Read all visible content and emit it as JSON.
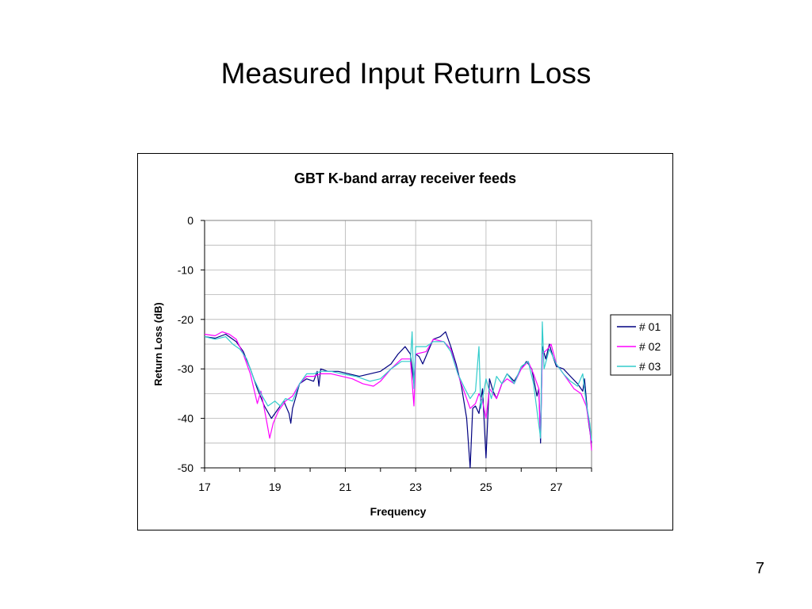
{
  "slide": {
    "title": "Measured Input Return Loss",
    "page_number": "7"
  },
  "chart_data": {
    "type": "line",
    "title": "GBT K-band array receiver feeds",
    "xlabel": "Frequency",
    "ylabel": "Return Loss (dB)",
    "xlim": [
      17,
      28
    ],
    "ylim": [
      -50,
      0
    ],
    "xticks": [
      17,
      19,
      21,
      23,
      25,
      27
    ],
    "yticks": [
      0,
      -10,
      -20,
      -30,
      -40,
      -50
    ],
    "grid": true,
    "legend_position": "right",
    "series": [
      {
        "name": "# 01",
        "color": "#000080",
        "points": [
          [
            17.0,
            -23.5
          ],
          [
            17.3,
            -23.8
          ],
          [
            17.6,
            -23.0
          ],
          [
            17.9,
            -24.5
          ],
          [
            18.1,
            -26.5
          ],
          [
            18.3,
            -30.0
          ],
          [
            18.5,
            -34.0
          ],
          [
            18.7,
            -37.5
          ],
          [
            18.9,
            -40.0
          ],
          [
            19.0,
            -39.0
          ],
          [
            19.1,
            -38.0
          ],
          [
            19.25,
            -36.5
          ],
          [
            19.4,
            -39.0
          ],
          [
            19.45,
            -41.0
          ],
          [
            19.5,
            -38.0
          ],
          [
            19.7,
            -33.0
          ],
          [
            19.9,
            -32.0
          ],
          [
            20.1,
            -32.5
          ],
          [
            20.2,
            -30.5
          ],
          [
            20.25,
            -33.5
          ],
          [
            20.3,
            -30.0
          ],
          [
            20.5,
            -30.5
          ],
          [
            20.8,
            -30.5
          ],
          [
            21.1,
            -31.0
          ],
          [
            21.4,
            -31.5
          ],
          [
            21.7,
            -31.0
          ],
          [
            22.0,
            -30.5
          ],
          [
            22.3,
            -29.0
          ],
          [
            22.5,
            -27.0
          ],
          [
            22.7,
            -25.5
          ],
          [
            22.85,
            -27.0
          ],
          [
            22.95,
            -33.0
          ],
          [
            23.0,
            -27.0
          ],
          [
            23.1,
            -27.5
          ],
          [
            23.2,
            -29.0
          ],
          [
            23.35,
            -26.5
          ],
          [
            23.5,
            -24.0
          ],
          [
            23.7,
            -23.5
          ],
          [
            23.85,
            -22.5
          ],
          [
            24.0,
            -25.5
          ],
          [
            24.15,
            -29.0
          ],
          [
            24.3,
            -33.5
          ],
          [
            24.45,
            -40.0
          ],
          [
            24.55,
            -50.0
          ],
          [
            24.62,
            -38.0
          ],
          [
            24.7,
            -37.5
          ],
          [
            24.8,
            -39.0
          ],
          [
            24.9,
            -34.0
          ],
          [
            25.0,
            -48.0
          ],
          [
            25.1,
            -32.0
          ],
          [
            25.2,
            -34.5
          ],
          [
            25.3,
            -36.0
          ],
          [
            25.45,
            -33.0
          ],
          [
            25.6,
            -31.0
          ],
          [
            25.8,
            -32.5
          ],
          [
            26.0,
            -30.0
          ],
          [
            26.15,
            -28.5
          ],
          [
            26.3,
            -30.0
          ],
          [
            26.45,
            -35.5
          ],
          [
            26.5,
            -34.0
          ],
          [
            26.55,
            -45.0
          ],
          [
            26.6,
            -25.5
          ],
          [
            26.7,
            -28.0
          ],
          [
            26.8,
            -25.0
          ],
          [
            26.9,
            -27.5
          ],
          [
            27.0,
            -29.5
          ],
          [
            27.2,
            -30.0
          ],
          [
            27.4,
            -31.5
          ],
          [
            27.6,
            -33.0
          ],
          [
            27.75,
            -34.5
          ],
          [
            27.8,
            -32.0
          ],
          [
            27.9,
            -40.0
          ],
          [
            28.0,
            -45.0
          ]
        ]
      },
      {
        "name": "# 02",
        "color": "#ff00ff",
        "points": [
          [
            17.0,
            -23.0
          ],
          [
            17.3,
            -23.3
          ],
          [
            17.5,
            -22.5
          ],
          [
            17.7,
            -23.0
          ],
          [
            17.9,
            -24.0
          ],
          [
            18.1,
            -27.0
          ],
          [
            18.3,
            -31.0
          ],
          [
            18.45,
            -35.5
          ],
          [
            18.5,
            -37.0
          ],
          [
            18.6,
            -34.5
          ],
          [
            18.75,
            -40.0
          ],
          [
            18.85,
            -44.0
          ],
          [
            18.95,
            -41.0
          ],
          [
            19.1,
            -38.5
          ],
          [
            19.3,
            -36.5
          ],
          [
            19.5,
            -35.5
          ],
          [
            19.7,
            -33.0
          ],
          [
            19.9,
            -31.5
          ],
          [
            20.1,
            -31.5
          ],
          [
            20.3,
            -31.0
          ],
          [
            20.6,
            -31.0
          ],
          [
            20.9,
            -31.5
          ],
          [
            21.2,
            -32.0
          ],
          [
            21.5,
            -33.0
          ],
          [
            21.8,
            -33.5
          ],
          [
            22.0,
            -32.5
          ],
          [
            22.3,
            -30.0
          ],
          [
            22.6,
            -28.0
          ],
          [
            22.85,
            -28.0
          ],
          [
            22.95,
            -37.5
          ],
          [
            23.0,
            -27.0
          ],
          [
            23.3,
            -26.5
          ],
          [
            23.5,
            -24.0
          ],
          [
            23.8,
            -24.5
          ],
          [
            24.0,
            -26.0
          ],
          [
            24.2,
            -31.0
          ],
          [
            24.4,
            -35.0
          ],
          [
            24.55,
            -38.0
          ],
          [
            24.7,
            -37.0
          ],
          [
            24.8,
            -35.0
          ],
          [
            24.9,
            -36.5
          ],
          [
            25.0,
            -40.0
          ],
          [
            25.1,
            -34.0
          ],
          [
            25.3,
            -36.0
          ],
          [
            25.45,
            -33.0
          ],
          [
            25.6,
            -32.0
          ],
          [
            25.8,
            -33.0
          ],
          [
            26.0,
            -30.0
          ],
          [
            26.2,
            -28.5
          ],
          [
            26.35,
            -31.0
          ],
          [
            26.5,
            -34.0
          ],
          [
            26.55,
            -44.0
          ],
          [
            26.6,
            -27.0
          ],
          [
            26.75,
            -26.0
          ],
          [
            26.85,
            -25.0
          ],
          [
            27.0,
            -29.0
          ],
          [
            27.2,
            -31.0
          ],
          [
            27.5,
            -34.0
          ],
          [
            27.7,
            -35.0
          ],
          [
            27.85,
            -37.5
          ],
          [
            27.95,
            -42.0
          ],
          [
            28.0,
            -46.5
          ]
        ]
      },
      {
        "name": "# 03",
        "color": "#33cccc",
        "points": [
          [
            17.0,
            -23.5
          ],
          [
            17.3,
            -24.0
          ],
          [
            17.6,
            -23.5
          ],
          [
            17.8,
            -25.0
          ],
          [
            18.0,
            -26.0
          ],
          [
            18.2,
            -28.0
          ],
          [
            18.4,
            -32.0
          ],
          [
            18.6,
            -35.0
          ],
          [
            18.8,
            -37.5
          ],
          [
            19.0,
            -36.5
          ],
          [
            19.15,
            -37.5
          ],
          [
            19.3,
            -36.0
          ],
          [
            19.5,
            -36.5
          ],
          [
            19.7,
            -33.0
          ],
          [
            19.9,
            -31.0
          ],
          [
            20.1,
            -31.0
          ],
          [
            20.3,
            -30.5
          ],
          [
            20.6,
            -30.5
          ],
          [
            20.9,
            -31.0
          ],
          [
            21.3,
            -31.5
          ],
          [
            21.7,
            -32.5
          ],
          [
            22.0,
            -32.0
          ],
          [
            22.3,
            -30.0
          ],
          [
            22.6,
            -28.5
          ],
          [
            22.85,
            -28.5
          ],
          [
            22.9,
            -22.5
          ],
          [
            22.95,
            -34.0
          ],
          [
            23.0,
            -25.5
          ],
          [
            23.3,
            -25.5
          ],
          [
            23.5,
            -24.5
          ],
          [
            23.8,
            -24.5
          ],
          [
            24.0,
            -26.5
          ],
          [
            24.2,
            -31.0
          ],
          [
            24.4,
            -34.0
          ],
          [
            24.55,
            -36.0
          ],
          [
            24.7,
            -34.5
          ],
          [
            24.8,
            -25.5
          ],
          [
            24.85,
            -38.0
          ],
          [
            25.0,
            -32.0
          ],
          [
            25.15,
            -36.0
          ],
          [
            25.3,
            -31.5
          ],
          [
            25.45,
            -33.0
          ],
          [
            25.6,
            -31.0
          ],
          [
            25.8,
            -33.0
          ],
          [
            26.0,
            -29.5
          ],
          [
            26.2,
            -28.5
          ],
          [
            26.35,
            -33.0
          ],
          [
            26.55,
            -44.0
          ],
          [
            26.6,
            -20.5
          ],
          [
            26.65,
            -30.0
          ],
          [
            26.8,
            -26.0
          ],
          [
            27.0,
            -29.0
          ],
          [
            27.2,
            -31.0
          ],
          [
            27.4,
            -32.5
          ],
          [
            27.6,
            -33.5
          ],
          [
            27.75,
            -31.0
          ],
          [
            27.85,
            -37.0
          ],
          [
            27.95,
            -41.0
          ],
          [
            28.0,
            -44.5
          ]
        ]
      }
    ]
  }
}
